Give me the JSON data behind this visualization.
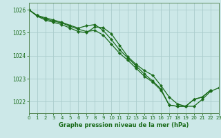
{
  "x": [
    0,
    1,
    2,
    3,
    4,
    5,
    6,
    7,
    8,
    9,
    10,
    11,
    12,
    13,
    14,
    15,
    16,
    17,
    18,
    19,
    20,
    21,
    22,
    23
  ],
  "series1": [
    1026.0,
    1025.75,
    1025.65,
    1025.55,
    1025.45,
    1025.32,
    1025.2,
    1025.3,
    1025.35,
    1025.1,
    1024.7,
    1024.25,
    1023.9,
    1023.55,
    1023.2,
    1022.9,
    1022.55,
    1021.85,
    1021.8,
    1021.8,
    1022.1,
    1022.2,
    1022.5,
    null
  ],
  "series2": [
    1026.0,
    1025.75,
    1025.6,
    1025.5,
    1025.42,
    1025.28,
    1025.15,
    1025.05,
    1025.1,
    1024.9,
    1024.5,
    1024.1,
    1023.8,
    1023.45,
    1023.1,
    1022.85,
    1022.5,
    1021.85,
    1021.8,
    1021.8,
    1022.1,
    1022.2,
    1022.5,
    null
  ],
  "series3": [
    1026.0,
    1025.72,
    1025.55,
    1025.45,
    1025.35,
    1025.2,
    1025.05,
    1025.0,
    1025.25,
    1025.22,
    1024.95,
    1024.45,
    1023.95,
    1023.62,
    1023.35,
    1023.15,
    1022.7,
    1022.2,
    1021.9,
    1021.8,
    1021.8,
    1022.1,
    1022.45,
    1022.6
  ],
  "line_color": "#1a6b1a",
  "bg_color": "#cce8e8",
  "grid_color": "#aacccc",
  "axis_color": "#5a8a5a",
  "ylabel_ticks": [
    1022,
    1023,
    1024,
    1025,
    1026
  ],
  "xlabel_ticks": [
    0,
    1,
    2,
    3,
    4,
    5,
    6,
    7,
    8,
    9,
    10,
    11,
    12,
    13,
    14,
    15,
    16,
    17,
    18,
    19,
    20,
    21,
    22,
    23
  ],
  "xlabel": "Graphe pression niveau de la mer (hPa)",
  "xlim": [
    0,
    23
  ],
  "ylim": [
    1021.5,
    1026.3
  ],
  "marker": "D",
  "marker_size": 2.2,
  "line_width": 0.9
}
